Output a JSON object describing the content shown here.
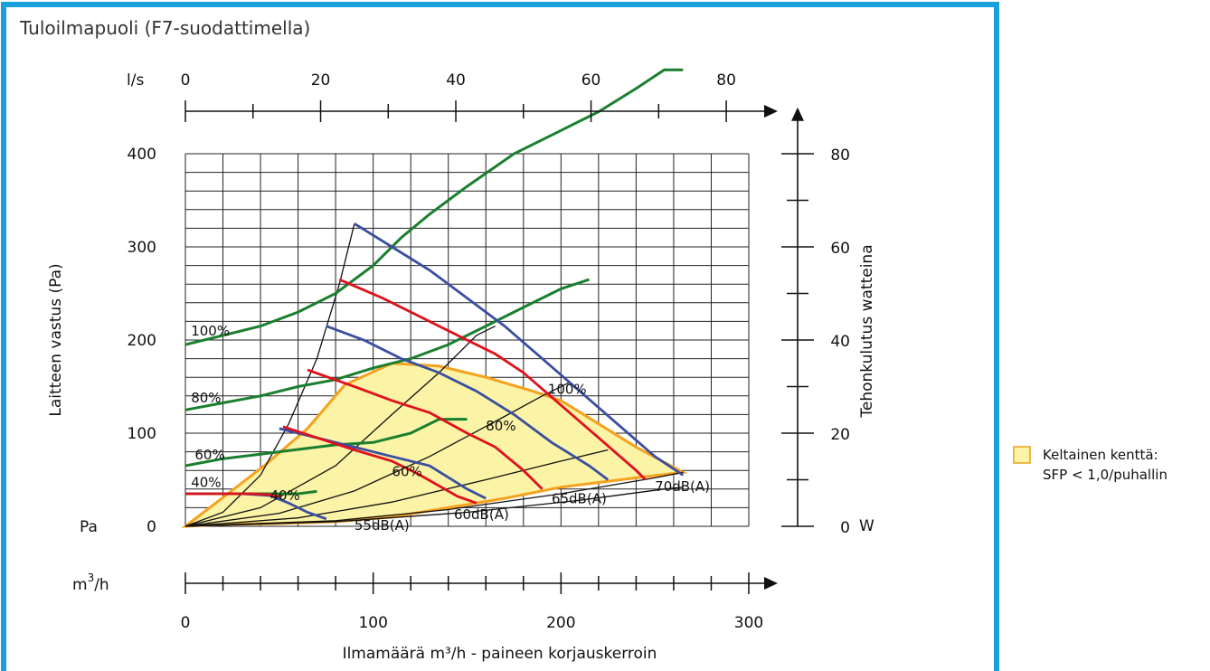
{
  "title": "Tuloilmapuoli (F7-suodattimella)",
  "chart_data": {
    "type": "line",
    "x_label": "Ilmamäärä m³/h - paineen korjauskerroin",
    "x_unit": "m³/h",
    "x_range": [
      0,
      300
    ],
    "x_ticks": [
      "0",
      "100",
      "200",
      "300"
    ],
    "x_minor_step": 20,
    "top_axis_unit": "l/s",
    "top_axis_range": [
      0,
      88
    ],
    "top_axis_ticks": [
      "0",
      "20",
      "40",
      "60",
      "80"
    ],
    "y_label": "Laitteen vastus (Pa)",
    "y_unit": "Pa",
    "y_range": [
      0,
      400
    ],
    "y_ticks": [
      "0",
      "100",
      "200",
      "300",
      "400"
    ],
    "y2_label": "Tehonkulutus watteina",
    "y2_unit": "W",
    "y2_range": [
      0,
      80
    ],
    "y2_ticks": [
      "0",
      "20",
      "40",
      "60",
      "80"
    ],
    "grid": true,
    "legend": {
      "position": "right",
      "items": [
        {
          "label_line1": "Keltainen kenttä:",
          "label_line2": "SFP < 1,0/puhallin",
          "color": "#fbf3a6"
        }
      ]
    },
    "colors": {
      "power": "#1a7f2e",
      "pressure": "#3a4fa0",
      "sound": "#e0101c",
      "sfp_border": "#f5a21e",
      "sfp_fill": "#fbf3a6",
      "system": "#111111"
    },
    "power_curves": {
      "axis": "y2",
      "series": [
        {
          "name": "100%",
          "points": [
            [
              0,
              39
            ],
            [
              20,
              41
            ],
            [
              40,
              43
            ],
            [
              60,
              46
            ],
            [
              80,
              50
            ],
            [
              100,
              56
            ],
            [
              115,
              62
            ],
            [
              130,
              67
            ],
            [
              150,
              73
            ],
            [
              175,
              80
            ],
            [
              200,
              85
            ],
            [
              220,
              89
            ],
            [
              240,
              94
            ],
            [
              255,
              98
            ],
            [
              265,
              98
            ]
          ]
        },
        {
          "name": "80%",
          "points": [
            [
              0,
              25
            ],
            [
              20,
              26.5
            ],
            [
              40,
              28
            ],
            [
              60,
              30
            ],
            [
              80,
              31.5
            ],
            [
              100,
              34
            ],
            [
              120,
              36
            ],
            [
              140,
              39
            ],
            [
              160,
              43
            ],
            [
              180,
              47
            ],
            [
              200,
              51
            ],
            [
              215,
              53
            ]
          ]
        },
        {
          "name": "60%",
          "points": [
            [
              0,
              13
            ],
            [
              20,
              14.5
            ],
            [
              40,
              15.5
            ],
            [
              60,
              16.5
            ],
            [
              80,
              17.5
            ],
            [
              100,
              18
            ],
            [
              120,
              20
            ],
            [
              135,
              23
            ],
            [
              150,
              23
            ]
          ]
        },
        {
          "name": "40%",
          "points": [
            [
              0,
              7
            ],
            [
              20,
              7
            ],
            [
              40,
              7
            ],
            [
              60,
              7
            ],
            [
              70,
              7.5
            ]
          ]
        }
      ]
    },
    "pressure_curves": {
      "axis": "y",
      "series": [
        {
          "name": "100%",
          "points": [
            [
              90,
              325
            ],
            [
              110,
              300
            ],
            [
              130,
              275
            ],
            [
              150,
              245
            ],
            [
              170,
              215
            ],
            [
              190,
              180
            ],
            [
              210,
              145
            ],
            [
              230,
              110
            ],
            [
              250,
              75
            ],
            [
              265,
              55
            ]
          ]
        },
        {
          "name": "80%",
          "points": [
            [
              75,
              215
            ],
            [
              95,
              200
            ],
            [
              115,
              180
            ],
            [
              135,
              165
            ],
            [
              155,
              145
            ],
            [
              175,
              120
            ],
            [
              195,
              90
            ],
            [
              215,
              65
            ],
            [
              225,
              50
            ]
          ]
        },
        {
          "name": "60%",
          "points": [
            [
              50,
              105
            ],
            [
              70,
              95
            ],
            [
              90,
              85
            ],
            [
              110,
              75
            ],
            [
              130,
              65
            ],
            [
              150,
              40
            ],
            [
              160,
              30
            ]
          ]
        },
        {
          "name": "40%",
          "points": [
            [
              30,
              35
            ],
            [
              45,
              33
            ],
            [
              55,
              25
            ],
            [
              65,
              15
            ],
            [
              75,
              8
            ]
          ]
        }
      ]
    },
    "sound_lines": {
      "axis": "y",
      "series": [
        {
          "name": "55dB(A)",
          "points": [
            [
              0,
              35
            ],
            [
              20,
              35
            ],
            [
              35,
              35
            ],
            [
              45,
              34
            ],
            [
              50,
              32
            ]
          ]
        },
        {
          "name": "60dB(A)",
          "points": [
            [
              52,
              107
            ],
            [
              70,
              95
            ],
            [
              90,
              82
            ],
            [
              110,
              70
            ],
            [
              125,
              55
            ],
            [
              145,
              32
            ],
            [
              155,
              25
            ]
          ]
        },
        {
          "name": "65dB(A)",
          "points": [
            [
              65,
              168
            ],
            [
              90,
              150
            ],
            [
              110,
              135
            ],
            [
              130,
              122
            ],
            [
              150,
              100
            ],
            [
              165,
              85
            ],
            [
              180,
              60
            ],
            [
              190,
              40
            ]
          ]
        },
        {
          "name": "70dB(A)",
          "points": [
            [
              82,
              265
            ],
            [
              105,
              245
            ],
            [
              125,
              225
            ],
            [
              145,
              205
            ],
            [
              165,
              185
            ],
            [
              180,
              165
            ],
            [
              200,
              130
            ],
            [
              220,
              95
            ],
            [
              240,
              60
            ],
            [
              245,
              50
            ]
          ]
        }
      ]
    },
    "sfp_region": {
      "points": [
        [
          0,
          0
        ],
        [
          42,
          65
        ],
        [
          65,
          105
        ],
        [
          85,
          152
        ],
        [
          110,
          175
        ],
        [
          135,
          172
        ],
        [
          160,
          160
        ],
        [
          185,
          145
        ],
        [
          200,
          135
        ],
        [
          220,
          110
        ],
        [
          240,
          85
        ],
        [
          265,
          58
        ],
        [
          240,
          52
        ],
        [
          200,
          42
        ],
        [
          170,
          30
        ],
        [
          140,
          20
        ],
        [
          110,
          10
        ],
        [
          80,
          5
        ],
        [
          50,
          3
        ],
        [
          20,
          2
        ],
        [
          0,
          0
        ]
      ]
    },
    "system_curves": {
      "axis": "y",
      "series": [
        {
          "points": [
            [
              0,
              0
            ],
            [
              20,
              15
            ],
            [
              40,
              55
            ],
            [
              55,
              110
            ],
            [
              70,
              180
            ],
            [
              82,
              260
            ],
            [
              90,
              325
            ]
          ]
        },
        {
          "points": [
            [
              0,
              0
            ],
            [
              40,
              20
            ],
            [
              80,
              65
            ],
            [
              110,
              120
            ],
            [
              135,
              165
            ],
            [
              155,
              205
            ],
            [
              165,
              215
            ]
          ]
        },
        {
          "points": [
            [
              0,
              0
            ],
            [
              50,
              14
            ],
            [
              90,
              38
            ],
            [
              130,
              75
            ],
            [
              170,
              118
            ],
            [
              190,
              140
            ],
            [
              205,
              155
            ]
          ]
        },
        {
          "points": [
            [
              0,
              0
            ],
            [
              60,
              9
            ],
            [
              110,
              26
            ],
            [
              160,
              50
            ],
            [
              200,
              70
            ],
            [
              225,
              82
            ]
          ]
        },
        {
          "points": [
            [
              0,
              0
            ],
            [
              80,
              6
            ],
            [
              140,
              18
            ],
            [
              200,
              35
            ],
            [
              250,
              52
            ],
            [
              265,
              58
            ]
          ]
        },
        {
          "points": [
            [
              0,
              0
            ],
            [
              80,
              5
            ],
            [
              150,
              15
            ],
            [
              210,
              28
            ],
            [
              255,
              40
            ],
            [
              265,
              42
            ]
          ]
        }
      ]
    },
    "annotations": [
      {
        "text": "100%",
        "x": 3,
        "y": 205
      },
      {
        "text": "80%",
        "x": 3,
        "y": 133
      },
      {
        "text": "60%",
        "x": 5,
        "y": 72
      },
      {
        "text": "40%",
        "x": 3,
        "y": 42
      },
      {
        "text": "40%",
        "x": 45,
        "y": 28
      },
      {
        "text": "60%",
        "x": 110,
        "y": 54
      },
      {
        "text": "80%",
        "x": 160,
        "y": 103
      },
      {
        "text": "100%",
        "x": 193,
        "y": 142
      },
      {
        "text": "55dB(A)",
        "x": 90,
        "y": -4
      },
      {
        "text": "60dB(A)",
        "x": 143,
        "y": 8
      },
      {
        "text": "65dB(A)",
        "x": 195,
        "y": 25
      },
      {
        "text": "70dB(A)",
        "x": 250,
        "y": 38
      }
    ],
    "labels": {
      "pa": "Pa",
      "w": "W",
      "ls": "l/s",
      "m3h_base": "m",
      "m3h_sup": "3",
      "m3h_rest": "/h"
    }
  }
}
